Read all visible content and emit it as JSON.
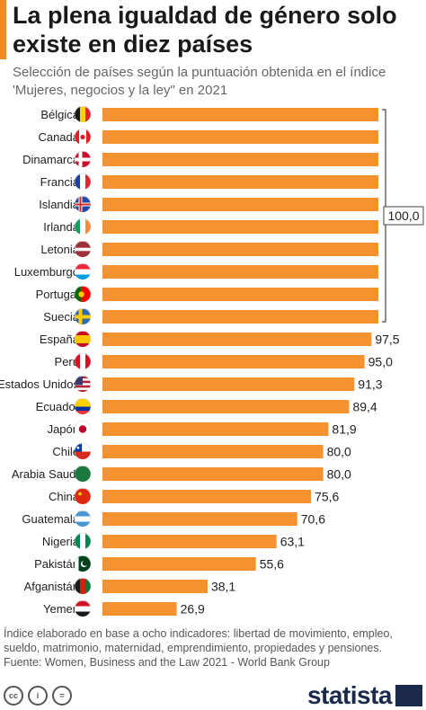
{
  "header": {
    "title": "La plena igualdad de género solo existe en diez países",
    "subtitle": "Selección de países según la puntuación obtenida en el índice 'Mujeres, negocios y la ley\" en 2021"
  },
  "chart_data": {
    "type": "bar",
    "orientation": "horizontal",
    "categories": [
      "Bélgica",
      "Canadá",
      "Dinamarca",
      "Francia",
      "Islandia",
      "Irlanda",
      "Letonia",
      "Luxemburgo",
      "Portugal",
      "Suecia",
      "España",
      "Perú",
      "Estados Unidos",
      "Ecuador",
      "Japón",
      "Chile",
      "Arabia Saudí",
      "China",
      "Guatemala",
      "Nigeria",
      "Pakistán",
      "Afganistán",
      "Yemen"
    ],
    "values": [
      100,
      100,
      100,
      100,
      100,
      100,
      100,
      100,
      100,
      100,
      97.5,
      95.0,
      91.3,
      89.4,
      81.9,
      80.0,
      80.0,
      75.6,
      70.6,
      63.1,
      55.6,
      38.1,
      26.9
    ],
    "value_labels": [
      "",
      "",
      "",
      "",
      "",
      "",
      "",
      "",
      "",
      "",
      "97,5",
      "95,0",
      "91,3",
      "89,4",
      "81,9",
      "80,0",
      "80,0",
      "75,6",
      "70,6",
      "63,1",
      "55,6",
      "38,1",
      "26,9"
    ],
    "bracket_label": "100,0",
    "xlim": [
      0,
      100
    ],
    "bar_color": "#f5922f",
    "grid": false,
    "legend": "none"
  },
  "flags": [
    {
      "type": "v",
      "colors": [
        "#1a1a1a",
        "#f7d117",
        "#e8202a"
      ]
    },
    {
      "type": "ca",
      "colors": [
        "#e31b23",
        "#ffffff",
        "#e31b23"
      ]
    },
    {
      "type": "nordic",
      "colors": [
        "#c8102e",
        "#ffffff"
      ]
    },
    {
      "type": "v",
      "colors": [
        "#1f3fa0",
        "#ffffff",
        "#e1262d"
      ]
    },
    {
      "type": "nordic2",
      "colors": [
        "#1f4aa8",
        "#ffffff",
        "#d72a2a"
      ]
    },
    {
      "type": "v",
      "colors": [
        "#169b62",
        "#ffffff",
        "#ff883e"
      ]
    },
    {
      "type": "h3",
      "colors": [
        "#9e3039",
        "#ffffff",
        "#9e3039"
      ],
      "weights": [
        2,
        1,
        2
      ]
    },
    {
      "type": "h3",
      "colors": [
        "#ed2939",
        "#ffffff",
        "#00a1de"
      ],
      "weights": [
        1,
        1,
        1
      ]
    },
    {
      "type": "pt",
      "colors": [
        "#006600",
        "#ff0000",
        "#ffcc00"
      ]
    },
    {
      "type": "nordic",
      "colors": [
        "#2b6cb0",
        "#fecc02"
      ]
    },
    {
      "type": "h3",
      "colors": [
        "#c60b1e",
        "#ffc400",
        "#c60b1e"
      ],
      "weights": [
        1,
        2,
        1
      ]
    },
    {
      "type": "v",
      "colors": [
        "#d91023",
        "#ffffff",
        "#d91023"
      ]
    },
    {
      "type": "us",
      "colors": [
        "#b22234",
        "#ffffff",
        "#3c3b6e"
      ]
    },
    {
      "type": "h3",
      "colors": [
        "#ffd100",
        "#0033a0",
        "#ef3340"
      ],
      "weights": [
        2,
        1,
        1
      ]
    },
    {
      "type": "jp",
      "colors": [
        "#ffffff",
        "#bc002d"
      ]
    },
    {
      "type": "cl",
      "colors": [
        "#0039a6",
        "#ffffff",
        "#d52b1e"
      ]
    },
    {
      "type": "solid",
      "colors": [
        "#1a7a3e"
      ]
    },
    {
      "type": "solid",
      "colors": [
        "#de2910",
        "#ffde00"
      ]
    },
    {
      "type": "h3",
      "colors": [
        "#4997d0",
        "#ffffff",
        "#4997d0"
      ],
      "weights": [
        1,
        1,
        1
      ]
    },
    {
      "type": "v",
      "colors": [
        "#008751",
        "#ffffff",
        "#008751"
      ]
    },
    {
      "type": "pk",
      "colors": [
        "#01411c",
        "#ffffff"
      ]
    },
    {
      "type": "v",
      "colors": [
        "#1a1a1a",
        "#d32011",
        "#007a36"
      ]
    },
    {
      "type": "h3",
      "colors": [
        "#ce1126",
        "#ffffff",
        "#1a1a1a"
      ],
      "weights": [
        1,
        1,
        1
      ]
    }
  ],
  "notes": {
    "line1": "Índice elaborado en base a ocho indicadores: libertad de movimiento, empleo,",
    "line2": "sueldo, matrimonio, maternidad, emprendimiento, propiedades y pensiones.",
    "source": "Fuente:  Women, Business and the Law 2021 - World Bank Group"
  },
  "footer": {
    "brand": "statista",
    "license_icons": [
      "cc-icon",
      "by-icon",
      "nd-icon"
    ],
    "license_text": [
      "cc",
      "i",
      "="
    ]
  }
}
